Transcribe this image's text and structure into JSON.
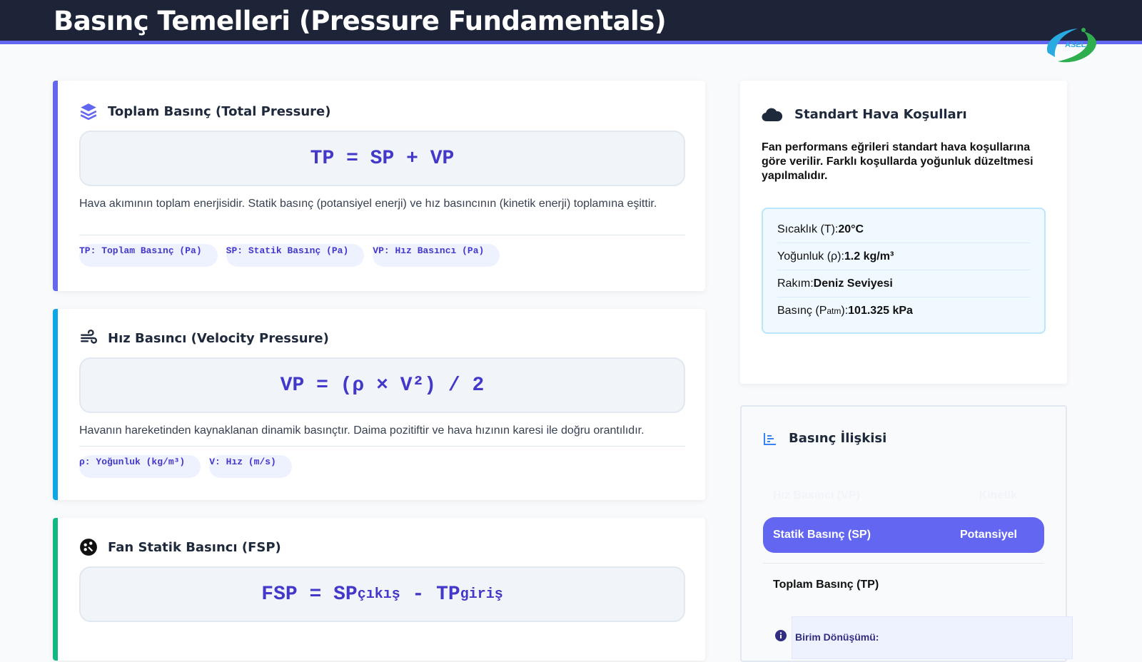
{
  "header": {
    "title": "Basınç Temelleri (Pressure Fundamentals)",
    "logo_text": "ASEL"
  },
  "cards": [
    {
      "title": "Toplam Basınç (Total Pressure)",
      "icon": "layers-icon",
      "accent": "#6366f1",
      "formula": "TP = SP + VP",
      "description": "Hava akımının toplam enerjisidir. Statik basınç (potansiyel enerji) ve hız basıncının (kinetik enerji) toplamına eşittir.",
      "chips": [
        "TP: Toplam Basınç (Pa)",
        "SP: Statik Basınç (Pa)",
        "VP: Hız Basıncı (Pa)"
      ]
    },
    {
      "title": "Hız Basıncı (Velocity Pressure)",
      "icon": "wind-icon",
      "accent": "#0ea5e9",
      "formula": "VP = (ρ × V²) / 2",
      "description": "Havanın hareketinden kaynaklanan dinamik basınçtır. Daima pozitiftir ve hava hızının karesi ile doğru orantılıdır.",
      "chips": [
        "ρ: Yoğunluk (kg/m³)",
        "V: Hız (m/s)"
      ]
    },
    {
      "title": "Fan Statik Basıncı (FSP)",
      "icon": "fan-icon",
      "accent": "#10b981",
      "formula_main": "FSP = SP",
      "formula_sub1": "çıkış",
      "formula_mid": " - TP",
      "formula_sub2": "giriş"
    }
  ],
  "standard": {
    "title": "Standart Hava Koşulları",
    "icon": "cloud-icon",
    "description": "Fan performans eğrileri standart hava koşullarına göre verilir. Farklı koşullarda yoğunluk düzeltmesi yapılmalıdır.",
    "rows": [
      {
        "label": "Sıcaklık (T):",
        "value": "20°C"
      },
      {
        "label": "Yoğunluk (ρ):",
        "value": "1.2 kg/m³"
      },
      {
        "label": "Rakım:",
        "value": "Deniz Seviyesi"
      },
      {
        "label_pre": "Basınç (P",
        "label_sub": "atm",
        "label_post": "):",
        "value": "101.325 kPa"
      }
    ]
  },
  "relation": {
    "title": "Basınç İlişkisi",
    "icon": "chart-bar-icon",
    "rows": [
      {
        "name": "Hız Basıncı (VP)",
        "type": "Kinetik"
      },
      {
        "name": "Statik Basınç (SP)",
        "type": "Potansiyel",
        "active": true
      },
      {
        "name": "Toplam Basınç (TP)",
        "type": ""
      }
    ],
    "note": "Birim Dönüşümü:"
  },
  "colors": {
    "accent": "#6366f1",
    "header": "#1e2437"
  }
}
